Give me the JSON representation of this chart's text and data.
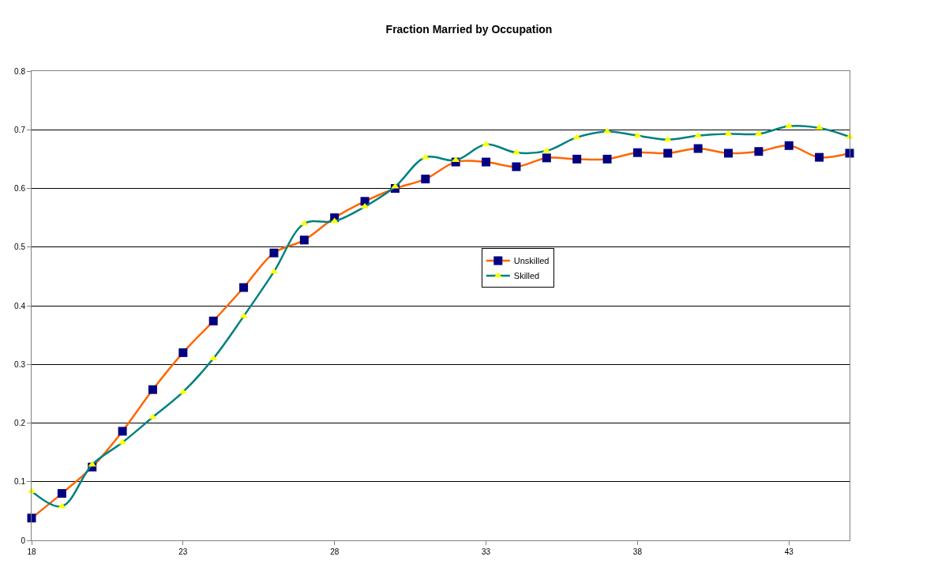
{
  "chart_data": {
    "type": "line",
    "title": "Fraction Married by Occupation",
    "x": [
      18,
      19,
      20,
      21,
      22,
      23,
      24,
      25,
      26,
      27,
      28,
      29,
      30,
      31,
      32,
      33,
      34,
      35,
      36,
      37,
      38,
      39,
      40,
      41,
      42,
      43,
      44,
      45
    ],
    "series": [
      {
        "name": "Unskilled",
        "color": "#ff6600",
        "colors": [
          "#000080",
          "#000080",
          "#000080",
          "#000080",
          "#000080",
          "#000080",
          "#000080",
          "#000080",
          "#000080",
          "#000080",
          "#000080",
          "#000080",
          "#000080",
          "#000080",
          "#000080",
          "#000080",
          "#000080",
          "#000080",
          "#000080",
          "#000080",
          "#000080",
          "#000080",
          "#000080",
          "#000080",
          "#000080",
          "#000080",
          "#000080",
          "#000080"
        ],
        "marker": "square",
        "values": [
          0.038,
          0.08,
          0.125,
          0.186,
          0.257,
          0.32,
          0.374,
          0.431,
          0.49,
          0.512,
          0.55,
          0.578,
          0.6,
          0.616,
          0.645,
          0.645,
          0.637,
          0.652,
          0.65,
          0.65,
          0.661,
          0.66,
          0.668,
          0.66,
          0.663,
          0.673,
          0.653,
          0.66
        ]
      },
      {
        "name": "Skilled",
        "color": "#008080",
        "colors": [
          "#ffff00",
          "#ffff00",
          "#ffff00",
          "#ffff00",
          "#ffff00",
          "#ffff00",
          "#ffff00",
          "#ffff00",
          "#ffff00",
          "#ffff00",
          "#ffff00",
          "#ffff00",
          "#ffff00",
          "#ffff00",
          "#ffff00",
          "#ffff00",
          "#ffff00",
          "#ffff00",
          "#ffff00",
          "#ffff00",
          "#ffff00",
          "#ffff00",
          "#ffff00",
          "#ffff00",
          "#ffff00",
          "#ffff00",
          "#ffff00",
          "#ffff00"
        ],
        "marker": "triangle",
        "values": [
          0.084,
          0.058,
          0.129,
          0.167,
          0.21,
          0.253,
          0.31,
          0.382,
          0.458,
          0.54,
          0.544,
          0.569,
          0.603,
          0.653,
          0.648,
          0.675,
          0.661,
          0.664,
          0.687,
          0.697,
          0.69,
          0.683,
          0.69,
          0.693,
          0.693,
          0.706,
          0.703,
          0.688
        ]
      }
    ],
    "xlim": [
      18,
      45
    ],
    "xticks": [
      18,
      23,
      28,
      33,
      38,
      43
    ],
    "ylim": [
      0,
      0.8
    ],
    "yticks": [
      0,
      0.1,
      0.2,
      0.3,
      0.4,
      0.5,
      0.6,
      0.7,
      0.8
    ],
    "grid": "y",
    "legend": "center"
  }
}
